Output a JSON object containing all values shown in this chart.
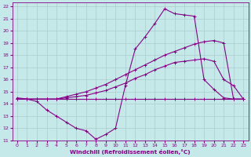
{
  "xlabel": "Windchill (Refroidissement éolien,°C)",
  "xlim": [
    -0.5,
    23.5
  ],
  "ylim": [
    11,
    22.3
  ],
  "xticks": [
    0,
    1,
    2,
    3,
    4,
    5,
    6,
    7,
    8,
    9,
    10,
    11,
    12,
    13,
    14,
    15,
    16,
    17,
    18,
    19,
    20,
    21,
    22,
    23
  ],
  "yticks": [
    11,
    12,
    13,
    14,
    15,
    16,
    17,
    18,
    19,
    20,
    21,
    22
  ],
  "bg_color": "#c5e8e8",
  "grid_color": "#aacccc",
  "line_color": "#880088",
  "flat_x": [
    0,
    1,
    2,
    3,
    4,
    5,
    6,
    7,
    8,
    9,
    10,
    11,
    12,
    13,
    14,
    15,
    16,
    17,
    18,
    19,
    20,
    21,
    22,
    23
  ],
  "flat_y": [
    14.4,
    14.4,
    14.4,
    14.4,
    14.4,
    14.4,
    14.4,
    14.4,
    14.4,
    14.4,
    14.4,
    14.4,
    14.4,
    14.4,
    14.4,
    14.4,
    14.4,
    14.4,
    14.4,
    14.4,
    14.4,
    14.4,
    14.4,
    14.4
  ],
  "dip_x": [
    0,
    1,
    2,
    3,
    4,
    5,
    6,
    7,
    8,
    9,
    10,
    11,
    12,
    13,
    14,
    15,
    16,
    17,
    18,
    19,
    20,
    21,
    22,
    23
  ],
  "dip_y": [
    14.5,
    14.4,
    14.2,
    13.5,
    13.0,
    12.5,
    12.0,
    11.8,
    11.1,
    11.5,
    12.0,
    15.5,
    18.5,
    19.5,
    20.6,
    21.8,
    21.4,
    21.3,
    21.2,
    16.0,
    15.2,
    14.5,
    14.4,
    14.4
  ],
  "rise1_x": [
    0,
    1,
    2,
    3,
    4,
    5,
    6,
    7,
    8,
    9,
    10,
    11,
    12,
    13,
    14,
    15,
    16,
    17,
    18,
    19,
    20,
    21,
    22,
    23
  ],
  "rise1_y": [
    14.4,
    14.4,
    14.4,
    14.4,
    14.4,
    14.5,
    14.6,
    14.7,
    14.9,
    15.1,
    15.4,
    15.7,
    16.1,
    16.4,
    16.8,
    17.1,
    17.4,
    17.5,
    17.6,
    17.7,
    17.5,
    16.0,
    15.5,
    14.4
  ],
  "rise2_x": [
    0,
    1,
    2,
    3,
    4,
    5,
    6,
    7,
    8,
    9,
    10,
    11,
    12,
    13,
    14,
    15,
    16,
    17,
    18,
    19,
    20,
    21,
    22,
    23
  ],
  "rise2_y": [
    14.4,
    14.4,
    14.4,
    14.4,
    14.4,
    14.6,
    14.8,
    15.0,
    15.3,
    15.6,
    16.0,
    16.4,
    16.8,
    17.2,
    17.6,
    18.0,
    18.3,
    18.6,
    18.9,
    19.1,
    19.2,
    19.0,
    14.4,
    14.4
  ]
}
